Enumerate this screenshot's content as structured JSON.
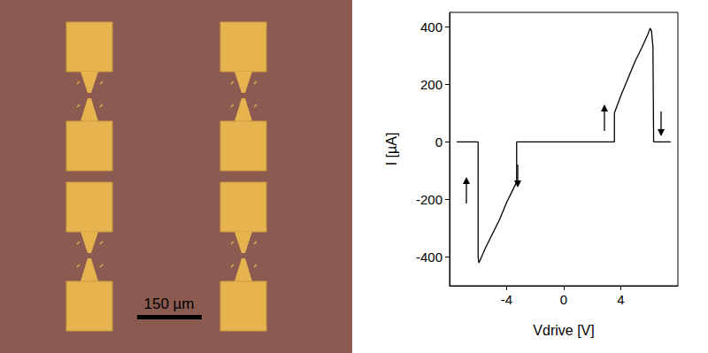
{
  "micrograph": {
    "scale_bar": "150 µm"
  },
  "chart_data": {
    "type": "line",
    "xlabel": "Vdrive [V]",
    "ylabel": "I [µA]",
    "x": [
      -7.5,
      -6.0,
      -6.0,
      -5.95,
      -5.85,
      -5.5,
      -5.0,
      -4.5,
      -4.0,
      -3.6,
      -3.3,
      -3.3,
      3.55,
      3.55,
      4.0,
      4.5,
      5.0,
      5.5,
      5.9,
      6.05,
      6.15,
      6.25,
      6.3,
      7.5
    ],
    "values": [
      0,
      0,
      -400,
      -420,
      -410,
      -370,
      -320,
      -270,
      -210,
      -170,
      -140,
      0,
      0,
      100,
      160,
      220,
      280,
      330,
      375,
      395,
      385,
      330,
      0,
      0
    ],
    "color": "#000000",
    "xlim": [
      -8,
      8
    ],
    "xticks": [
      -4,
      0,
      4
    ],
    "ylim": [
      -500,
      450
    ],
    "yticks": [
      -400,
      -200,
      0,
      200,
      400
    ],
    "grid": false
  }
}
